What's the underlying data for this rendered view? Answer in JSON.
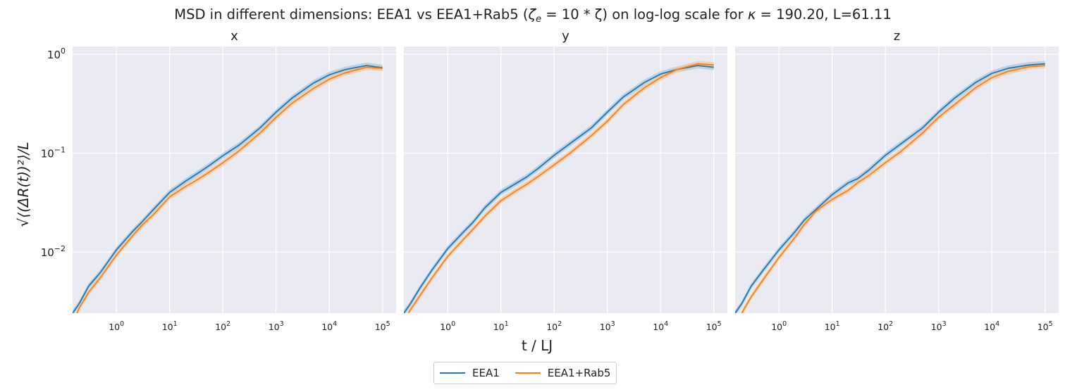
{
  "chart_data": {
    "type": "line",
    "title": "MSD in different dimensions: EEA1 vs EEA1+Rab5 (ζ_e = 10 * ζ) on log-log scale for κ = 190.20, L=61.11",
    "title_parts": {
      "prefix": "MSD in different dimensions: EEA1 vs EEA1+Rab5 (",
      "zeta_e": "ζ",
      "zeta_e_sub": "e",
      "middle": " = 10 * ζ) on log-log scale for ",
      "kappa": "κ",
      "suffix": " = 190.20, L=61.11"
    },
    "xlabel": "t / LJ",
    "ylabel": "√⟨(ΔR(t))²⟩/L",
    "xscale": "log",
    "yscale": "log",
    "xlim": [
      0.15,
      180000
    ],
    "ylim": [
      0.0024,
      1.2
    ],
    "grid": true,
    "legend_position": "bottom-center",
    "x_ticks": [
      {
        "base": "10",
        "exp": "0",
        "value": 1
      },
      {
        "base": "10",
        "exp": "1",
        "value": 10
      },
      {
        "base": "10",
        "exp": "2",
        "value": 100
      },
      {
        "base": "10",
        "exp": "3",
        "value": 1000
      },
      {
        "base": "10",
        "exp": "4",
        "value": 10000
      },
      {
        "base": "10",
        "exp": "5",
        "value": 100000
      }
    ],
    "y_ticks": [
      {
        "base": "10",
        "exp": "−2",
        "value": 0.01
      },
      {
        "base": "10",
        "exp": "−1",
        "value": 0.1
      },
      {
        "base": "10",
        "exp": "0",
        "value": 1
      }
    ],
    "colors": {
      "EEA1": "#1f77b4",
      "EEA1+Rab5": "#ff7f0e",
      "band_EEA1": "#a7c6de",
      "band_Rab5": "#f2c7a3"
    },
    "panels": [
      {
        "title": "x",
        "series": [
          {
            "name": "EEA1",
            "x": [
              0.15,
              0.2,
              0.3,
              0.5,
              1,
              2,
              3,
              5,
              10,
              20,
              30,
              50,
              100,
              200,
              500,
              1000,
              2000,
              5000,
              10000,
              20000,
              50000,
              100000
            ],
            "y": [
              0.0024,
              0.003,
              0.0045,
              0.0062,
              0.0105,
              0.016,
              0.02,
              0.027,
              0.04,
              0.052,
              0.06,
              0.072,
              0.094,
              0.12,
              0.18,
              0.26,
              0.36,
              0.51,
              0.62,
              0.7,
              0.77,
              0.73
            ]
          },
          {
            "name": "EEA1+Rab5",
            "x": [
              0.18,
              0.2,
              0.3,
              0.5,
              1,
              2,
              3,
              5,
              10,
              20,
              30,
              50,
              100,
              200,
              500,
              1000,
              2000,
              5000,
              10000,
              20000,
              50000,
              100000
            ],
            "y": [
              0.0024,
              0.0027,
              0.0039,
              0.0055,
              0.0093,
              0.0145,
              0.0185,
              0.024,
              0.036,
              0.046,
              0.052,
              0.062,
              0.08,
              0.105,
              0.16,
              0.23,
              0.32,
              0.45,
              0.56,
              0.65,
              0.74,
              0.72
            ]
          }
        ]
      },
      {
        "title": "y",
        "series": [
          {
            "name": "EEA1",
            "x": [
              0.15,
              0.2,
              0.3,
              0.5,
              1,
              2,
              3,
              5,
              10,
              20,
              30,
              50,
              100,
              200,
              500,
              1000,
              2000,
              5000,
              10000,
              20000,
              50000,
              100000
            ],
            "y": [
              0.0024,
              0.003,
              0.0043,
              0.0065,
              0.0108,
              0.016,
              0.02,
              0.028,
              0.04,
              0.05,
              0.057,
              0.07,
              0.095,
              0.125,
              0.18,
              0.26,
              0.37,
              0.52,
              0.63,
              0.7,
              0.77,
              0.74
            ]
          },
          {
            "name": "EEA1+Rab5",
            "x": [
              0.18,
              0.2,
              0.3,
              0.5,
              1,
              2,
              3,
              5,
              10,
              20,
              30,
              50,
              100,
              200,
              500,
              1000,
              2000,
              5000,
              10000,
              20000,
              50000,
              100000
            ],
            "y": [
              0.0024,
              0.0026,
              0.0036,
              0.0054,
              0.009,
              0.0135,
              0.017,
              0.023,
              0.033,
              0.042,
              0.048,
              0.058,
              0.076,
              0.1,
              0.15,
              0.21,
              0.31,
              0.46,
              0.58,
              0.7,
              0.8,
              0.78
            ]
          }
        ]
      },
      {
        "title": "z",
        "series": [
          {
            "name": "EEA1",
            "x": [
              0.15,
              0.2,
              0.3,
              0.5,
              1,
              2,
              3,
              5,
              10,
              20,
              30,
              50,
              100,
              200,
              500,
              1000,
              2000,
              5000,
              10000,
              20000,
              50000,
              100000
            ],
            "y": [
              0.0024,
              0.003,
              0.0045,
              0.0065,
              0.0105,
              0.016,
              0.021,
              0.027,
              0.038,
              0.05,
              0.055,
              0.068,
              0.095,
              0.125,
              0.18,
              0.26,
              0.36,
              0.52,
              0.64,
              0.72,
              0.78,
              0.8
            ]
          },
          {
            "name": "EEA1+Rab5",
            "x": [
              0.2,
              0.3,
              0.5,
              1,
              2,
              3,
              5,
              10,
              20,
              30,
              50,
              100,
              200,
              500,
              1000,
              2000,
              5000,
              10000,
              20000,
              50000,
              100000
            ],
            "y": [
              0.0024,
              0.0035,
              0.0052,
              0.0088,
              0.014,
              0.019,
              0.026,
              0.034,
              0.042,
              0.05,
              0.06,
              0.08,
              0.105,
              0.16,
              0.23,
              0.31,
              0.46,
              0.58,
              0.67,
              0.75,
              0.77
            ]
          }
        ]
      }
    ]
  }
}
